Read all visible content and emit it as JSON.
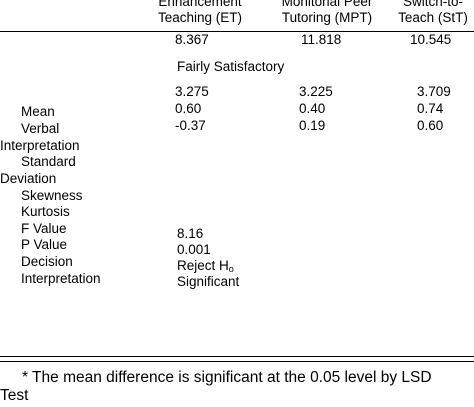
{
  "header": {
    "col_et": [
      "Enhancement",
      "Teaching (ET)"
    ],
    "col_mpt": [
      "Monitorial Peer",
      "Tutoring (MPT)"
    ],
    "col_stt": [
      "Switch-to-",
      "Teach (StT)"
    ]
  },
  "row_labels": {
    "mean": "Mean",
    "verbal": "Verbal",
    "interpretation_1": "Interpretation",
    "standard": "Standard",
    "deviation": "Deviation",
    "skewness": "Skewness",
    "kurtosis": "Kurtosis",
    "f_value": "F Value",
    "p_value": "P Value",
    "decision": "Decision",
    "interpretation_2": "Interpretation"
  },
  "means": {
    "et": "8.367",
    "mpt": "11.818",
    "stt": "10.545"
  },
  "verbal_interpretation": "Fairly Satisfactory",
  "standard_deviation": {
    "et": "3.275",
    "mpt": "3.225",
    "stt": "3.709"
  },
  "skewness": {
    "et": "0.60",
    "mpt": "0.40",
    "stt": "0.74"
  },
  "kurtosis": {
    "et": "-0.37",
    "mpt": "0.19",
    "stt": "0.60"
  },
  "anova": {
    "f_value": "8.16",
    "p_value": "0.001",
    "decision_prefix": "Reject H",
    "decision_sub": "o",
    "interpretation": "Significant"
  },
  "footnote": {
    "line1": "* The mean difference is significant at the 0.05 level by LSD",
    "line2": "Test"
  }
}
